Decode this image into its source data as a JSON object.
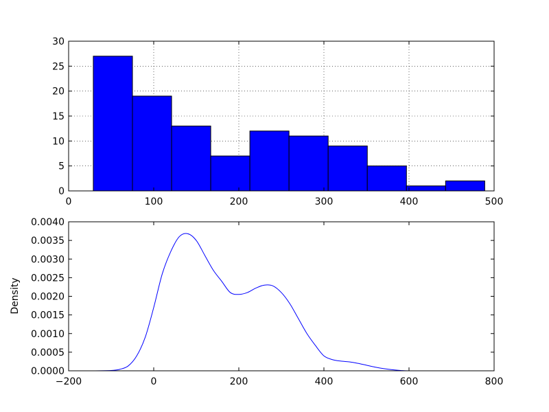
{
  "chart_data": [
    {
      "type": "bar",
      "subtype": "histogram",
      "bins": [
        {
          "x0": 29,
          "x1": 75,
          "count": 27
        },
        {
          "x0": 75,
          "x1": 121,
          "count": 19
        },
        {
          "x0": 121,
          "x1": 167,
          "count": 13
        },
        {
          "x0": 167,
          "x1": 213,
          "count": 7
        },
        {
          "x0": 213,
          "x1": 259,
          "count": 12
        },
        {
          "x0": 259,
          "x1": 305,
          "count": 11
        },
        {
          "x0": 305,
          "x1": 351,
          "count": 9
        },
        {
          "x0": 351,
          "x1": 397,
          "count": 5
        },
        {
          "x0": 397,
          "x1": 443,
          "count": 1
        },
        {
          "x0": 443,
          "x1": 489,
          "count": 2
        }
      ],
      "xlim": [
        0,
        500
      ],
      "ylim": [
        0,
        30
      ],
      "xticks": [
        0,
        100,
        200,
        300,
        400,
        500
      ],
      "yticks": [
        0,
        5,
        10,
        15,
        20,
        25,
        30
      ],
      "xtick_labels": [
        "0",
        "100",
        "200",
        "300",
        "400",
        "500"
      ],
      "ytick_labels": [
        "0",
        "5",
        "10",
        "15",
        "20",
        "25",
        "30"
      ],
      "grid": true,
      "bar_color": "#0000ff",
      "edge_color": "#000000"
    },
    {
      "type": "line",
      "subtype": "density",
      "ylabel": "Density",
      "x": [
        -200,
        -150,
        -100,
        -80,
        -60,
        -40,
        -20,
        0,
        20,
        40,
        60,
        80,
        100,
        120,
        140,
        160,
        180,
        200,
        220,
        240,
        260,
        280,
        300,
        320,
        340,
        360,
        380,
        400,
        420,
        440,
        460,
        480,
        500,
        520,
        540,
        560,
        580,
        600,
        650,
        718
      ],
      "y": [
        0.0,
        0.0,
        1e-05,
        4e-05,
        0.00013,
        0.0004,
        0.0009,
        0.0017,
        0.0026,
        0.0032,
        0.0036,
        0.00368,
        0.0035,
        0.0031,
        0.0027,
        0.0024,
        0.0021,
        0.00205,
        0.0021,
        0.00222,
        0.0023,
        0.00228,
        0.0021,
        0.0018,
        0.0014,
        0.001,
        0.00068,
        0.0004,
        0.0003,
        0.00026,
        0.00024,
        0.0002,
        0.00015,
        0.0001,
        6e-05,
        3e-05,
        1e-05,
        0.0,
        0.0,
        0.0
      ],
      "xlim": [
        -200,
        800
      ],
      "ylim": [
        0,
        0.004
      ],
      "xticks": [
        -200,
        0,
        200,
        400,
        600,
        800
      ],
      "yticks": [
        0,
        0.0005,
        0.001,
        0.0015,
        0.002,
        0.0025,
        0.003,
        0.0035,
        0.004
      ],
      "xtick_labels": [
        "−200",
        "0",
        "200",
        "400",
        "600",
        "800"
      ],
      "ytick_labels": [
        "0.0000",
        "0.0005",
        "0.0010",
        "0.0015",
        "0.0020",
        "0.0025",
        "0.0030",
        "0.0035",
        "0.0040"
      ],
      "grid": false,
      "line_color": "#0000ff"
    }
  ]
}
